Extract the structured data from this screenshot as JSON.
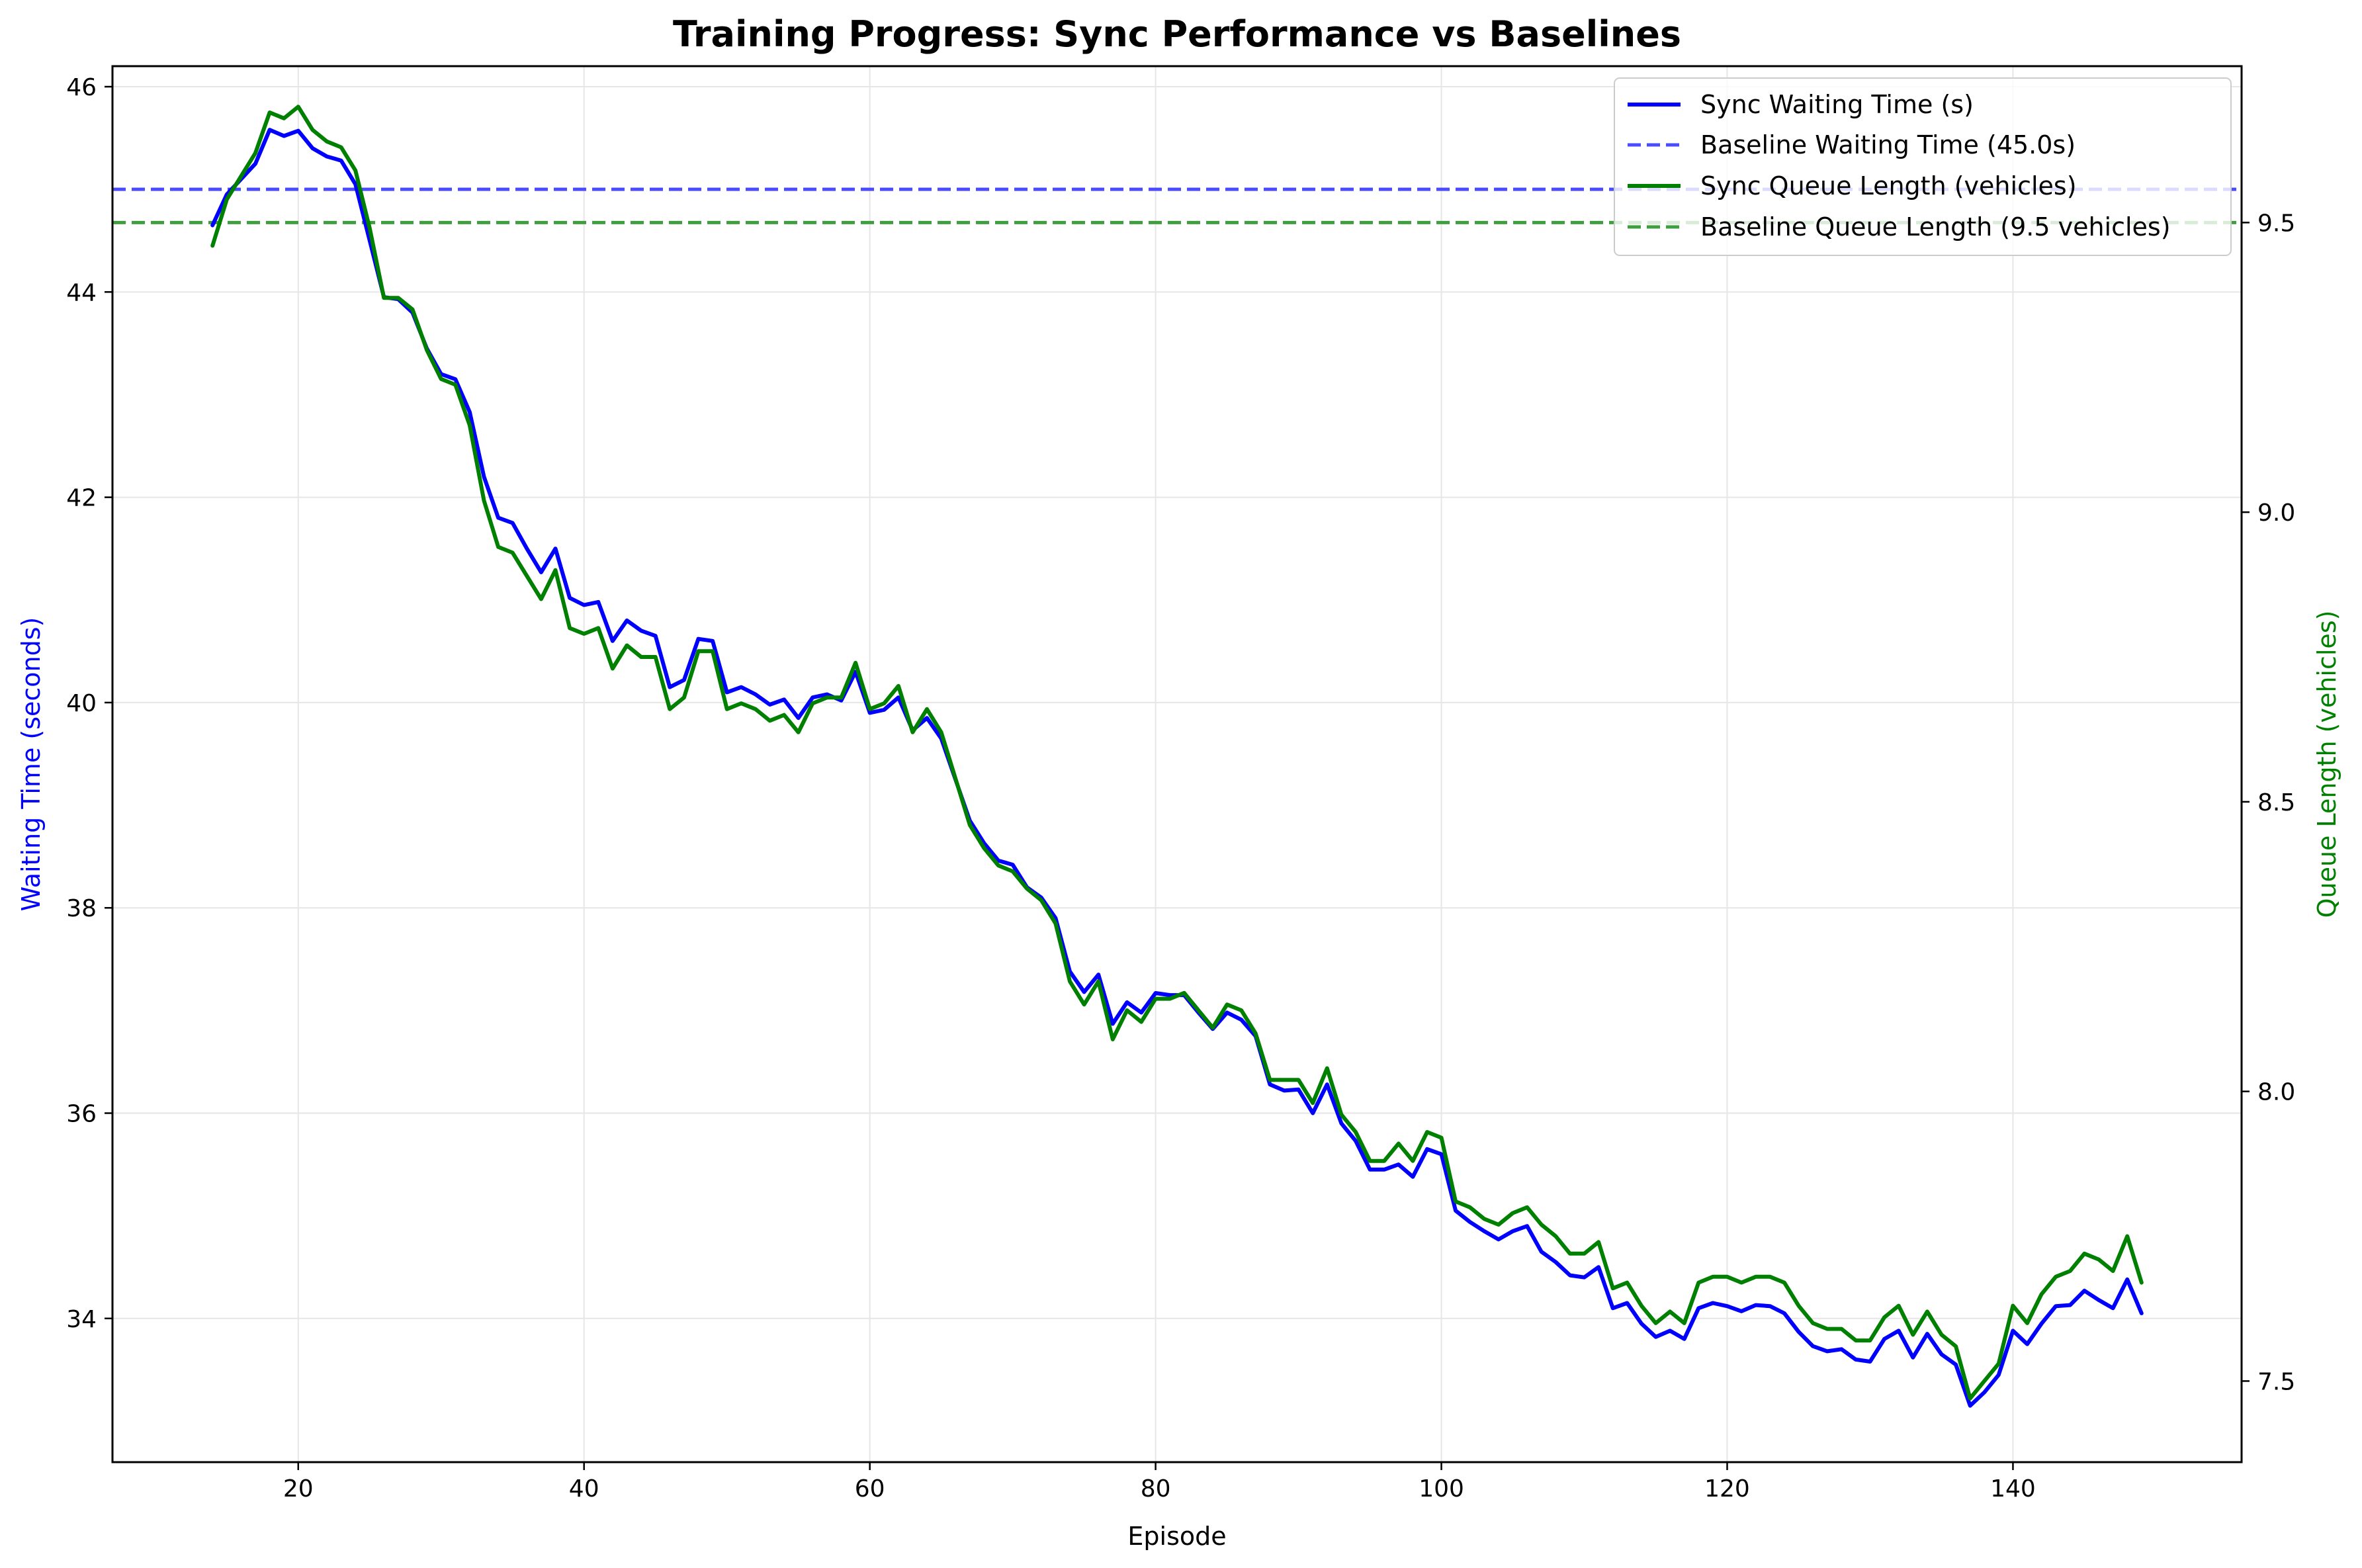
{
  "chart_data": {
    "type": "line",
    "title": "Training Progress: Sync Performance vs Baselines",
    "xlabel": "Episode",
    "ylabel": "Waiting Time (seconds)",
    "ylabel_right": "Queue Length (vehicles)",
    "xlim": [
      7,
      156
    ],
    "ylim": [
      32.6,
      46.2
    ],
    "ylim_right": [
      7.36,
      9.77
    ],
    "x_ticks": [
      20,
      40,
      60,
      80,
      100,
      120,
      140
    ],
    "y_ticks": [
      34,
      36,
      38,
      40,
      42,
      44,
      46
    ],
    "y_ticks_right": [
      7.5,
      8.0,
      8.5,
      9.0,
      9.5
    ],
    "x_tick_labels": [
      "20",
      "40",
      "60",
      "80",
      "100",
      "120",
      "140"
    ],
    "y_tick_labels": [
      "34",
      "36",
      "38",
      "40",
      "42",
      "44",
      "46"
    ],
    "y_tick_labels_right": [
      "7.5",
      "8.0",
      "8.5",
      "9.0",
      "9.5"
    ],
    "grid": true,
    "legend_position": "top-right",
    "colors": {
      "waiting": "#0000ff",
      "baseline_waiting": "#4b4bff",
      "queue": "#008000",
      "baseline_queue": "#3f9f3f",
      "ylabel_left": "#0000ff",
      "ylabel_right": "#008000"
    },
    "x": [
      14,
      15,
      16,
      17,
      18,
      19,
      20,
      21,
      22,
      23,
      24,
      25,
      26,
      27,
      28,
      29,
      30,
      31,
      32,
      33,
      34,
      35,
      36,
      37,
      38,
      39,
      40,
      41,
      42,
      43,
      44,
      45,
      46,
      47,
      48,
      49,
      50,
      51,
      52,
      53,
      54,
      55,
      56,
      57,
      58,
      59,
      60,
      61,
      62,
      63,
      64,
      65,
      66,
      67,
      68,
      69,
      70,
      71,
      72,
      73,
      74,
      75,
      76,
      77,
      78,
      79,
      80,
      81,
      82,
      83,
      84,
      85,
      86,
      87,
      88,
      89,
      90,
      91,
      92,
      93,
      94,
      95,
      96,
      97,
      98,
      99,
      100,
      101,
      102,
      103,
      104,
      105,
      106,
      107,
      108,
      109,
      110,
      111,
      112,
      113,
      114,
      115,
      116,
      117,
      118,
      119,
      120,
      121,
      122,
      123,
      124,
      125,
      126,
      127,
      128,
      129,
      130,
      131,
      132,
      133,
      134,
      135,
      136,
      137,
      138,
      139,
      140,
      141,
      142,
      143,
      144,
      145,
      146,
      147,
      148,
      149
    ],
    "series": [
      {
        "name": "Sync Waiting Time (s)",
        "axis": "left",
        "style": "solid",
        "values": [
          44.65,
          44.95,
          45.1,
          45.25,
          45.58,
          45.52,
          45.57,
          45.4,
          45.32,
          45.28,
          45.05,
          44.5,
          43.95,
          43.93,
          43.8,
          43.45,
          43.2,
          43.15,
          42.83,
          42.2,
          41.8,
          41.75,
          41.5,
          41.27,
          41.5,
          41.02,
          40.95,
          40.98,
          40.6,
          40.8,
          40.7,
          40.65,
          40.15,
          40.22,
          40.62,
          40.6,
          40.1,
          40.15,
          40.08,
          39.98,
          40.03,
          39.85,
          40.05,
          40.08,
          40.02,
          40.3,
          39.9,
          39.93,
          40.05,
          39.73,
          39.85,
          39.65,
          39.25,
          38.85,
          38.63,
          38.46,
          38.42,
          38.2,
          38.1,
          37.9,
          37.38,
          37.18,
          37.35,
          36.87,
          37.08,
          36.98,
          37.17,
          37.15,
          37.15,
          36.98,
          36.82,
          36.98,
          36.91,
          36.75,
          36.28,
          36.22,
          36.23,
          36.0,
          36.28,
          35.9,
          35.73,
          35.45,
          35.45,
          35.5,
          35.38,
          35.65,
          35.6,
          35.05,
          34.94,
          34.85,
          34.77,
          34.85,
          34.9,
          34.65,
          34.55,
          34.42,
          34.4,
          34.5,
          34.1,
          34.15,
          33.95,
          33.82,
          33.88,
          33.8,
          34.1,
          34.15,
          34.12,
          34.07,
          34.13,
          34.12,
          34.05,
          33.87,
          33.73,
          33.68,
          33.7,
          33.6,
          33.58,
          33.8,
          33.88,
          33.62,
          33.85,
          33.65,
          33.55,
          33.15,
          33.28,
          33.45,
          33.88,
          33.75,
          33.95,
          34.12,
          34.13,
          34.27,
          34.18,
          34.1,
          34.38,
          34.05
        ]
      },
      {
        "name": "Baseline Waiting Time (45.0s)",
        "axis": "left",
        "style": "dashed",
        "constant": 45.0
      },
      {
        "name": "Sync Queue Length (vehicles)",
        "axis": "right",
        "style": "solid",
        "values": [
          9.46,
          9.54,
          9.58,
          9.62,
          9.69,
          9.68,
          9.7,
          9.66,
          9.64,
          9.63,
          9.59,
          9.49,
          9.37,
          9.37,
          9.35,
          9.28,
          9.23,
          9.22,
          9.15,
          9.02,
          8.94,
          8.93,
          8.89,
          8.85,
          8.9,
          8.8,
          8.79,
          8.8,
          8.73,
          8.77,
          8.75,
          8.75,
          8.66,
          8.68,
          8.76,
          8.76,
          8.66,
          8.67,
          8.66,
          8.64,
          8.65,
          8.62,
          8.67,
          8.68,
          8.68,
          8.74,
          8.66,
          8.67,
          8.7,
          8.62,
          8.66,
          8.62,
          8.54,
          8.46,
          8.42,
          8.39,
          8.38,
          8.35,
          8.33,
          8.29,
          8.19,
          8.15,
          8.19,
          8.09,
          8.14,
          8.12,
          8.16,
          8.16,
          8.17,
          8.14,
          8.11,
          8.15,
          8.14,
          8.1,
          8.02,
          8.02,
          8.02,
          7.98,
          8.04,
          7.96,
          7.93,
          7.88,
          7.88,
          7.91,
          7.88,
          7.93,
          7.92,
          7.81,
          7.8,
          7.78,
          7.77,
          7.79,
          7.8,
          7.77,
          7.75,
          7.72,
          7.72,
          7.74,
          7.66,
          7.67,
          7.63,
          7.6,
          7.62,
          7.6,
          7.67,
          7.68,
          7.68,
          7.67,
          7.68,
          7.68,
          7.67,
          7.63,
          7.6,
          7.59,
          7.59,
          7.57,
          7.57,
          7.61,
          7.63,
          7.58,
          7.62,
          7.58,
          7.56,
          7.47,
          7.5,
          7.53,
          7.63,
          7.6,
          7.65,
          7.68,
          7.69,
          7.72,
          7.71,
          7.69,
          7.75,
          7.67
        ]
      },
      {
        "name": "Baseline Queue Length (9.5 vehicles)",
        "axis": "right",
        "style": "dashed",
        "constant": 9.5
      }
    ]
  }
}
